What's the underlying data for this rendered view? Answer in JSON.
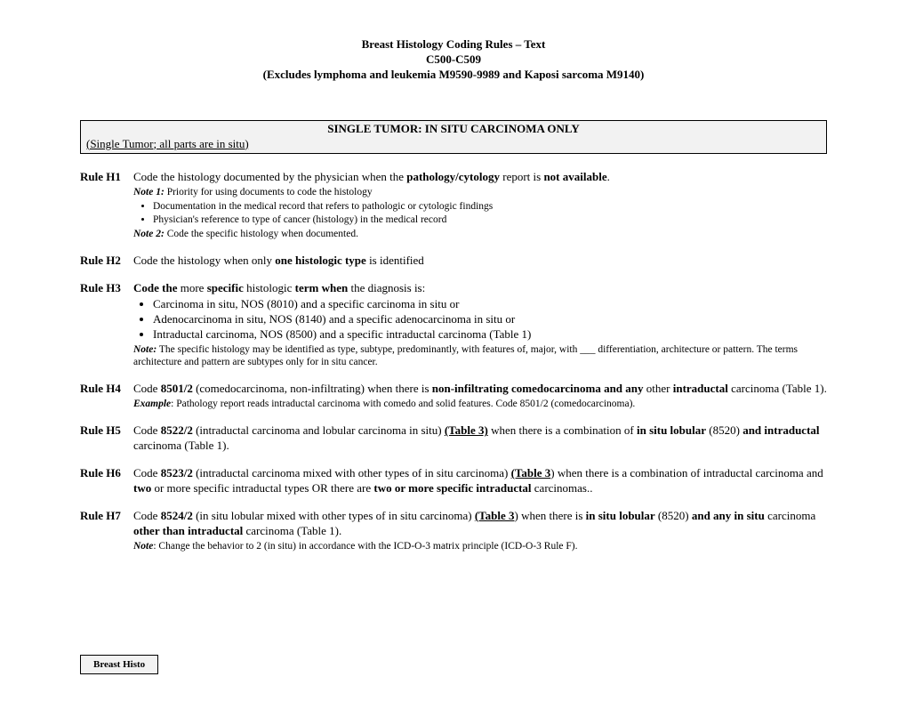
{
  "header": {
    "line1": "Breast Histology Coding Rules – Text",
    "line2": "C500-C509",
    "line3": "(Excludes lymphoma and leukemia M9590-9989 and Kaposi sarcoma M9140)"
  },
  "section": {
    "title": "SINGLE TUMOR: IN SITU CARCINOMA ONLY",
    "subtitle": "(Single Tumor; all parts are in situ)"
  },
  "rules": {
    "h1": {
      "label": "Rule H1",
      "t1": "Code the histology documented by the physician when the ",
      "t2": "pathology/cytology",
      "t3": " report is ",
      "t4": "not available",
      "t5": ".",
      "note1_lbl": "Note 1:",
      "note1_txt": " Priority for using documents to code the histology",
      "b1": "Documentation in the medical record that refers to pathologic or cytologic findings",
      "b2": "Physician's reference to type of cancer (histology) in the medical record",
      "note2_lbl": "Note 2:",
      "note2_txt": " Code the specific histology when documented."
    },
    "h2": {
      "label": "Rule H2",
      "t1": "Code the histology when only ",
      "t2": "one histologic type",
      "t3": " is identified"
    },
    "h3": {
      "label": "Rule H3",
      "t1": "Code the ",
      "t2": "more ",
      "t3": "specific ",
      "t4": "histologic ",
      "t5": "term when ",
      "t6": "the diagnosis is:",
      "b1": "Carcinoma in situ, NOS (8010) and a specific carcinoma in situ or",
      "b2": "Adenocarcinoma in situ, NOS (8140) and a specific adenocarcinoma in situ or",
      "b3": "Intraductal carcinoma, NOS (8500) and a specific intraductal carcinoma (Table 1)",
      "note_lbl": "Note:",
      "note_txt": " The specific histology may be identified as type, subtype, predominantly, with features of, major, with ___ differentiation, architecture or pattern. The terms architecture and pattern are subtypes only for in situ cancer."
    },
    "h4": {
      "label": "Rule H4",
      "t1": "Code ",
      "t2": "8501/2",
      "t3": " (comedocarcinoma, non-infiltrating) when there is ",
      "t4": "non-infiltrating comedocarcinoma and any",
      "t5": " other ",
      "t6": "intraductal",
      "t7": " carcinoma (Table 1).",
      "ex_lbl": "Example",
      "ex_txt": ": Pathology report reads intraductal carcinoma with comedo and solid features.  Code 8501/2 (comedocarcinoma)."
    },
    "h5": {
      "label": "Rule H5",
      "t1": "Code ",
      "t2": "8522/2",
      "t3": " (intraductal carcinoma and lobular carcinoma in situ) ",
      "t4": "(Table 3)",
      "t5": " when there is a combination of ",
      "t6": "in situ lobular",
      "t7": " (8520) ",
      "t8": "and intraductal",
      "t9": " carcinoma (Table 1)."
    },
    "h6": {
      "label": "Rule H6",
      "t1": "Code ",
      "t2": "8523/2",
      "t3": " (intraductal carcinoma mixed with other types of in situ carcinoma) ",
      "t4": "(Table 3",
      "t5": ") when there is a combination of intraductal carcinoma and ",
      "t6": "two",
      "t7": " or more specific intraductal types OR there are ",
      "t8": "two or more specific intraductal",
      "t9": " carcinomas.."
    },
    "h7": {
      "label": "Rule H7",
      "t1": "Code ",
      "t2": "8524/2",
      "t3": " (in situ lobular mixed with other types of in situ carcinoma) ",
      "t4": "(Table 3",
      "t5": ") when there is ",
      "t6": "in situ lobular",
      "t7": " (8520) ",
      "t8": "and any in situ",
      "t9": " carcinoma ",
      "t10": "other than intraductal",
      "t11": " carcinoma (Table 1).",
      "note_lbl": "Note",
      "note_txt": ": Change the behavior to 2 (in situ) in accordance with the ICD-O-3 matrix principle (ICD-O-3 Rule F)."
    }
  },
  "footer": {
    "tab": "Breast Histo"
  }
}
